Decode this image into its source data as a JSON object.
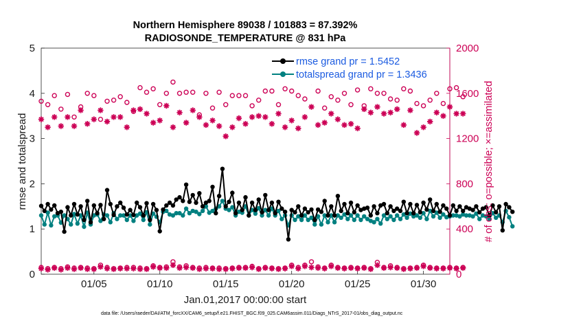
{
  "colors": {
    "rmse": "#000000",
    "spread": "#008080",
    "obs": "#cc0055",
    "legend_text": "#1a5ae0"
  },
  "chart_data": {
    "type": "line",
    "title_line1": "Northern Hemisphere 89038 / 101883 = 87.392%",
    "title_line2": "RADIOSONDE_TEMPERATURE @ 831 hPa",
    "xlabel": "Jan.01,2017 00:00:00 start",
    "ylabel_left": "rmse and totalspread",
    "ylabel_right": "# of obs: o=possible; ×=assimilated",
    "xlim": [
      1,
      32
    ],
    "ylim_left": [
      0,
      5
    ],
    "ylim_right": [
      0,
      2000
    ],
    "x_ticks": [
      5,
      10,
      15,
      20,
      25,
      30
    ],
    "x_tick_labels": [
      "01/05",
      "01/10",
      "01/15",
      "01/20",
      "01/25",
      "01/30"
    ],
    "y_left_ticks": [
      0,
      1,
      2,
      3,
      4,
      5
    ],
    "y_left_tick_labels": [
      "0",
      "1",
      "2",
      "3",
      "4",
      "5"
    ],
    "y_right_ticks": [
      0,
      400,
      800,
      1200,
      1600,
      2000
    ],
    "y_right_tick_labels": [
      "0",
      "400",
      "800",
      "1200",
      "1600",
      "2000"
    ],
    "legend": [
      {
        "key": "rmse",
        "label": "rmse grand pr = 1.5452"
      },
      {
        "key": "spread",
        "label": "totalspread grand pr = 1.3436"
      }
    ],
    "series": [
      {
        "name": "rmse",
        "axis": "left",
        "x_start": 1.0,
        "x_step": 0.25,
        "values": [
          1.51,
          1.4,
          1.55,
          1.43,
          1.52,
          1.35,
          1.38,
          0.94,
          1.48,
          1.3,
          1.55,
          1.32,
          1.5,
          1.2,
          1.62,
          1.15,
          1.52,
          1.35,
          1.53,
          1.22,
          1.86,
          1.55,
          1.31,
          1.5,
          1.58,
          1.47,
          1.32,
          1.42,
          1.31,
          1.58,
          1.48,
          1.3,
          1.57,
          1.2,
          1.55,
          1.42,
          0.95,
          1.43,
          1.52,
          1.58,
          1.52,
          1.65,
          1.7,
          1.62,
          1.98,
          1.6,
          1.75,
          1.58,
          1.79,
          1.5,
          1.58,
          1.62,
          1.93,
          1.35,
          1.73,
          2.33,
          1.5,
          1.6,
          1.8,
          1.35,
          1.58,
          1.42,
          1.7,
          1.3,
          1.58,
          1.42,
          1.65,
          1.37,
          1.75,
          1.42,
          1.58,
          1.35,
          1.6,
          1.45,
          1.38,
          0.77,
          1.42,
          1.37,
          1.5,
          1.3,
          1.45,
          1.37,
          1.43,
          1.2,
          1.43,
          1.38,
          1.62,
          1.3,
          1.5,
          1.3,
          1.73,
          1.4,
          1.55,
          1.35,
          1.58,
          1.37,
          1.52,
          1.42,
          1.45,
          1.47,
          1.3,
          1.5,
          1.35,
          1.52,
          1.55,
          1.35,
          1.5,
          1.4,
          1.45,
          1.4,
          1.6,
          1.35,
          1.55,
          1.35,
          1.53,
          1.37,
          1.58,
          1.43,
          1.65,
          1.4,
          1.55,
          1.38,
          1.52,
          1.45,
          1.3,
          1.52,
          1.4,
          1.5,
          1.4,
          1.48,
          1.45,
          1.42,
          1.5,
          1.37,
          1.45,
          1.48,
          1.3,
          1.52,
          1.37,
          1.5,
          0.97,
          1.55,
          1.48,
          1.38
        ]
      },
      {
        "name": "totalspread",
        "axis": "left",
        "x_start": 1.0,
        "x_step": 0.25,
        "values": [
          1.3,
          1.1,
          1.36,
          1.08,
          1.28,
          1.3,
          1.14,
          1.3,
          1.22,
          1.1,
          1.33,
          1.12,
          1.3,
          1.05,
          1.36,
          1.1,
          1.3,
          1.32,
          1.18,
          1.32,
          1.3,
          1.15,
          1.35,
          1.22,
          1.3,
          1.3,
          1.2,
          1.3,
          1.18,
          1.3,
          1.34,
          1.2,
          1.37,
          1.1,
          1.34,
          1.27,
          1.15,
          1.38,
          1.4,
          1.32,
          1.3,
          1.35,
          1.35,
          1.3,
          1.45,
          1.35,
          1.4,
          1.38,
          1.33,
          1.4,
          1.5,
          1.36,
          1.4,
          1.45,
          1.5,
          1.62,
          1.45,
          1.42,
          1.48,
          1.3,
          1.38,
          1.36,
          1.5,
          1.3,
          1.42,
          1.34,
          1.46,
          1.3,
          1.42,
          1.3,
          1.45,
          1.3,
          1.4,
          1.22,
          1.3,
          1.08,
          1.3,
          1.2,
          1.28,
          1.2,
          1.3,
          1.2,
          1.25,
          1.1,
          1.28,
          1.1,
          1.3,
          1.15,
          1.3,
          1.15,
          1.3,
          1.25,
          1.32,
          1.22,
          1.3,
          1.2,
          1.3,
          1.2,
          1.28,
          1.22,
          1.18,
          1.15,
          1.22,
          1.12,
          1.3,
          1.22,
          1.28,
          1.2,
          1.3,
          1.22,
          1.32,
          1.25,
          1.34,
          1.28,
          1.3,
          1.25,
          1.35,
          1.22,
          1.4,
          1.28,
          1.36,
          1.25,
          1.32,
          1.26,
          1.28,
          1.3,
          1.3,
          1.28,
          1.32,
          1.3,
          1.3,
          1.28,
          1.34,
          1.22,
          1.3,
          1.28,
          1.22,
          1.35,
          1.25,
          1.3,
          1.15,
          1.4,
          1.26,
          1.06
        ]
      },
      {
        "name": "obs possible",
        "axis": "right",
        "x_start": 1.0,
        "x_step": 0.5,
        "values": [
          1530,
          1500,
          1580,
          1460,
          1590,
          1390,
          1480,
          1600,
          1580,
          1370,
          1530,
          1540,
          1570,
          1520,
          1440,
          1650,
          1610,
          1640,
          1500,
          1600,
          1700,
          1600,
          1610,
          1610,
          1410,
          1600,
          1470,
          1610,
          1500,
          1580,
          1580,
          1580,
          1490,
          1540,
          1620,
          1620,
          1500,
          1640,
          1620,
          1580,
          1550,
          1700,
          1620,
          1470,
          1570,
          1540,
          1600,
          1500,
          1630,
          1490,
          1640,
          1600,
          1600,
          1550,
          1540,
          1640,
          1620,
          1510,
          1490,
          1540,
          1600,
          1510,
          1640,
          1650,
          1570
        ]
      },
      {
        "name": "obs assimilated",
        "axis": "right",
        "x_start": 1.0,
        "x_step": 0.5,
        "values": [
          1370,
          1300,
          1390,
          1310,
          1390,
          1310,
          1450,
          1330,
          1370,
          1450,
          1350,
          1390,
          1390,
          1300,
          1450,
          1460,
          1420,
          1340,
          1360,
          1490,
          1300,
          1430,
          1340,
          1450,
          1390,
          1320,
          1360,
          1310,
          1220,
          1300,
          1380,
          1330,
          1390,
          1400,
          1390,
          1330,
          1420,
          1300,
          1360,
          1290,
          1390,
          1480,
          1320,
          1340,
          1420,
          1370,
          1320,
          1330,
          1290,
          1460,
          1430,
          1480,
          1420,
          1430,
          1460,
          1320,
          1450,
          1250,
          1300,
          1350,
          1430,
          1400,
          1480,
          1420,
          1420
        ]
      },
      {
        "name": "obs possible low",
        "axis": "right",
        "x_start": 1.0,
        "x_step": 0.5,
        "values": [
          60,
          50,
          60,
          50,
          65,
          55,
          60,
          55,
          50,
          80,
          60,
          50,
          55,
          60,
          60,
          55,
          50,
          75,
          60,
          65,
          110,
          65,
          75,
          60,
          55,
          60,
          55,
          55,
          50,
          55,
          60,
          60,
          70,
          50,
          60,
          55,
          50,
          55,
          80,
          60,
          80,
          110,
          65,
          55,
          80,
          60,
          55,
          60,
          55,
          60,
          50,
          105,
          60,
          75,
          60,
          50,
          55,
          60,
          80,
          60,
          55,
          55,
          60,
          55,
          60
        ]
      },
      {
        "name": "obs assimilated low",
        "axis": "right",
        "x_start": 1.0,
        "x_step": 0.5,
        "values": [
          50,
          40,
          55,
          40,
          55,
          45,
          55,
          45,
          45,
          65,
          50,
          45,
          50,
          50,
          50,
          45,
          45,
          65,
          55,
          55,
          80,
          55,
          60,
          55,
          45,
          50,
          50,
          45,
          45,
          50,
          55,
          55,
          60,
          45,
          55,
          50,
          45,
          50,
          70,
          50,
          70,
          60,
          55,
          50,
          70,
          55,
          50,
          55,
          50,
          55,
          45,
          80,
          55,
          60,
          55,
          45,
          50,
          55,
          70,
          55,
          50,
          50,
          55,
          50,
          55
        ]
      }
    ]
  },
  "footnote": "data file: /Users/raeder/DAI/ATM_forcXX/CAM6_setup/f.e21.FHIST_BGC.f09_025.CAM6assim.011/Diags_NTrS_2017-01/obs_diag_output.nc"
}
